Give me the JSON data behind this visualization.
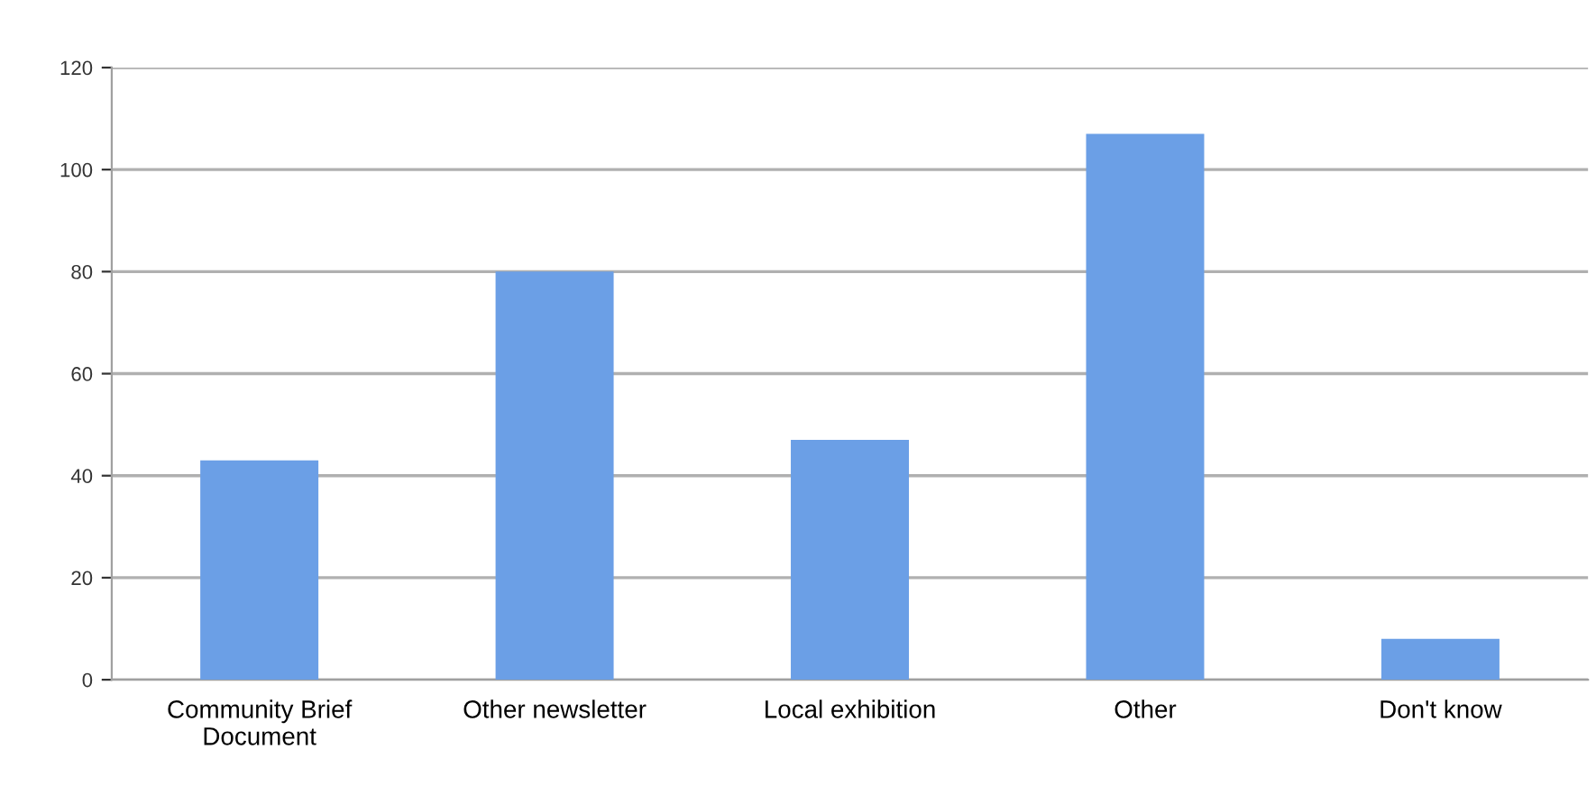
{
  "chart_data": {
    "type": "bar",
    "categories": [
      "Community Brief\nDocument",
      "Other newsletter",
      "Local exhibition",
      "Other",
      "Don't know"
    ],
    "values": [
      43,
      80,
      47,
      107,
      8
    ],
    "color": "#6b9fe6",
    "ylim": [
      0,
      120
    ],
    "yticks": [
      0,
      20,
      40,
      60,
      80,
      100,
      120
    ],
    "grid": "y",
    "legend": false
  }
}
